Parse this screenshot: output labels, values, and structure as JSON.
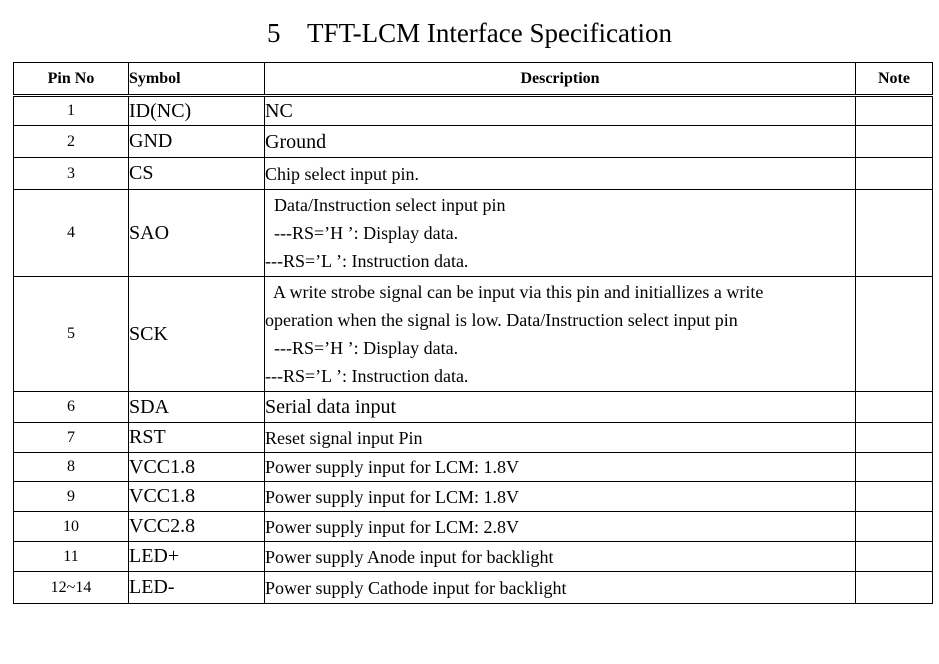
{
  "title": "5    TFT-LCM Interface Specification",
  "headers": {
    "pin": "Pin No",
    "symbol": "Symbol",
    "description": "Description",
    "note": "Note"
  },
  "rows": [
    {
      "pin": "1",
      "symbol": "ID(NC)",
      "description": [
        "NC"
      ]
    },
    {
      "pin": "2",
      "symbol": "GND",
      "description": [
        "Ground"
      ]
    },
    {
      "pin": "3",
      "symbol": "CS",
      "description": [
        "Chip select input pin."
      ]
    },
    {
      "pin": "4",
      "symbol": "SAO",
      "description": [
        "  Data/Instruction select input pin",
        "  ---RS=’H ’: Display data.",
        "---RS=’L ’: Instruction data."
      ]
    },
    {
      "pin": "5",
      "symbol": "SCK",
      "description": [
        "  A write strobe signal can be input via this pin and initiallizes a write",
        "operation when the signal is low. Data/Instruction select input pin",
        "  ---RS=’H ’: Display data.",
        "---RS=’L ’: Instruction data."
      ]
    },
    {
      "pin": "6",
      "symbol": "SDA",
      "description": [
        "Serial data input"
      ]
    },
    {
      "pin": "7",
      "symbol": "RST",
      "description": [
        "Reset signal input Pin"
      ]
    },
    {
      "pin": "8",
      "symbol": "VCC1.8",
      "description": [
        "Power supply input for LCM: 1.8V"
      ]
    },
    {
      "pin": "9",
      "symbol": "VCC1.8",
      "description": [
        "Power supply input for LCM: 1.8V"
      ]
    },
    {
      "pin": "10",
      "symbol": "VCC2.8",
      "description": [
        "Power supply input for LCM: 2.8V"
      ]
    },
    {
      "pin": "11",
      "symbol": "LED+",
      "description": [
        "Power supply Anode input for backlight"
      ]
    },
    {
      "pin": "12~14",
      "symbol": "LED-",
      "description": [
        "Power supply Cathode input for backlight"
      ]
    }
  ]
}
